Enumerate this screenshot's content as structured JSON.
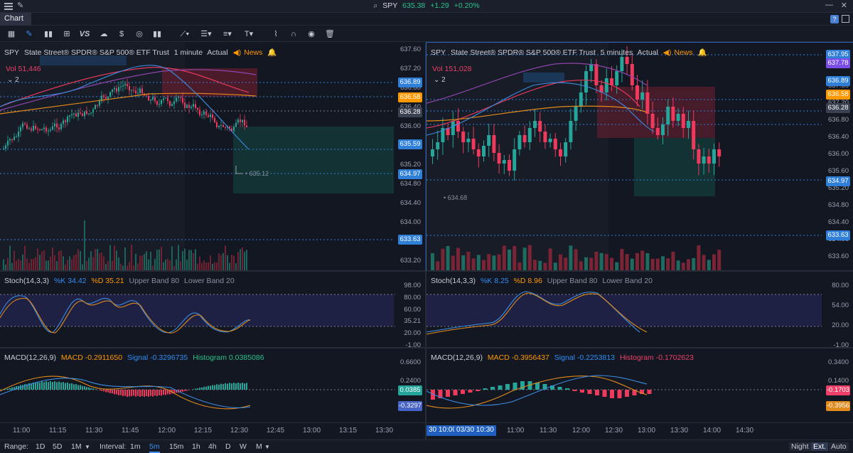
{
  "titlebar": {
    "symbol": "SPY",
    "price": "635.38",
    "change": "+1.29",
    "change_pct": "+0.20%"
  },
  "tab": {
    "label": "Chart"
  },
  "left": {
    "symbol": "SPY",
    "name": "State Street® SPDR® S&P 500® ETF Trust",
    "interval": "1 minute",
    "mode": "Actual",
    "news": "News",
    "vol_label": "Vol",
    "vol_value": "51,446",
    "pos_label": "2",
    "price_ticks": [
      "637.60",
      "637.20",
      "636.80",
      "636.40",
      "636.00",
      "635.60",
      "635.20",
      "634.80",
      "634.40",
      "634.00",
      "633.60",
      "633.20"
    ],
    "price_labels": [
      {
        "text": "636.89",
        "color": "#2f7fd8"
      },
      {
        "text": "636.58",
        "color": "#ff9800"
      },
      {
        "text": "636.28",
        "color": "#3a4150"
      },
      {
        "text": "635.59",
        "color": "#2f7fd8"
      },
      {
        "text": "634.97",
        "color": "#2f7fd8"
      },
      {
        "text": "633.63",
        "color": "#2f7fd8"
      }
    ],
    "low_marker": "635.12",
    "stoch": {
      "title": "Stoch(14,3,3)",
      "k": "%K 34.42",
      "d": "%D 35.21",
      "upper": "Upper Band 80",
      "lower": "Lower Band 20",
      "ticks": [
        "98.00",
        "80.00",
        "60.00",
        "35.21",
        "20.00",
        "-1.00"
      ]
    },
    "macd": {
      "title": "MACD(12,26,9)",
      "macd": "MACD -0.2911650",
      "signal": "Signal -0.3296735",
      "hist": "Histogram 0.0385086",
      "ticks": [
        "0.6600",
        "0.2400",
        "0.0385",
        "-0.3297"
      ]
    },
    "times": [
      "11:00",
      "11:15",
      "11:30",
      "11:45",
      "12:00",
      "12:15",
      "12:30",
      "12:45",
      "13:00",
      "13:15",
      "13:30"
    ]
  },
  "right": {
    "symbol": "SPY",
    "name": "State Street® SPDR® S&P 500® ETF Trust",
    "interval": "5 minutes",
    "mode": "Actual",
    "news": "News",
    "vol_label": "Vol",
    "vol_value": "151,028",
    "pos_label": "2",
    "price_ticks": [
      "637.60",
      "637.20",
      "636.80",
      "636.40",
      "636.00",
      "635.60",
      "635.20",
      "634.80",
      "634.40",
      "634.00",
      "633.60",
      "633.00"
    ],
    "price_labels": [
      {
        "text": "637.95",
        "color": "#2f7fd8"
      },
      {
        "text": "637.78",
        "color": "#7b4ee8"
      },
      {
        "text": "636.89",
        "color": "#2f7fd8"
      },
      {
        "text": "636.58",
        "color": "#ff9800"
      },
      {
        "text": "636.28",
        "color": "#3a4150"
      },
      {
        "text": "634.97",
        "color": "#2f7fd8"
      },
      {
        "text": "633.63",
        "color": "#2f7fd8"
      }
    ],
    "low_marker": "634.68",
    "stoch": {
      "title": "Stoch(14,3,3)",
      "k": "%K 8.25",
      "d": "%D 8.96",
      "upper": "Upper Band 80",
      "lower": "Lower Band 20",
      "ticks": [
        "80.00",
        "54.00",
        "20.00",
        "-1.00"
      ]
    },
    "macd": {
      "title": "MACD(12,26,9)",
      "macd": "MACD -0.3956437",
      "signal": "Signal -0.2253813",
      "hist": "Histogram -0.1702623",
      "ticks": [
        "0.3400",
        "0.1400",
        "-0.1703",
        "-0.3956"
      ]
    },
    "time_badges": [
      "30 10:00",
      "03/30 10:30"
    ],
    "times": [
      "11:00",
      "11:30",
      "12:00",
      "12:30",
      "13:00",
      "13:30",
      "14:00",
      "14:30"
    ]
  },
  "bottom": {
    "range_label": "Range:",
    "ranges": [
      "1D",
      "5D",
      "1M"
    ],
    "interval_label": "Interval:",
    "intervals": [
      "1m",
      "5m",
      "15m",
      "1h",
      "4h",
      "D",
      "W",
      "M"
    ],
    "active_interval": "5m",
    "right_buttons": [
      "Night",
      "Ext.",
      "Auto"
    ]
  },
  "colors": {
    "up": "#26a69a",
    "down": "#ef3a5d",
    "accent": "#2f8df5",
    "bg": "#131722"
  }
}
